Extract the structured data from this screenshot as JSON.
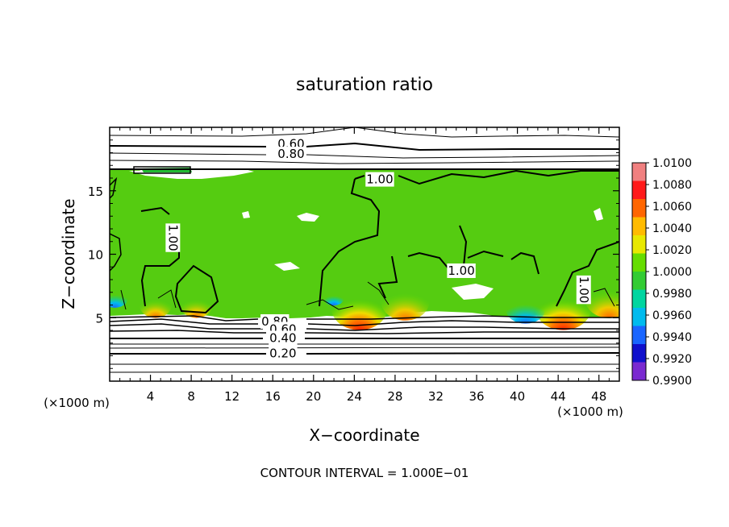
{
  "chart_data": {
    "type": "heatmap",
    "title": "saturation ratio",
    "xlabel": "X−coordinate",
    "ylabel": "Z−coordinate",
    "x_unit_left": "(×1000 m)",
    "x_unit_right": "(×1000 m)",
    "footer": "CONTOUR INTERVAL = 1.000E−01",
    "xlim": [
      0,
      50
    ],
    "ylim": [
      0,
      20
    ],
    "x_ticks": [
      4,
      8,
      12,
      16,
      20,
      24,
      28,
      32,
      36,
      40,
      44,
      48
    ],
    "y_ticks": [
      5,
      10,
      15
    ],
    "colorbar": {
      "min": 0.99,
      "max": 1.01,
      "labels": [
        "1.0100",
        "1.0080",
        "1.0060",
        "1.0040",
        "1.0020",
        "1.0000",
        "0.9980",
        "0.9960",
        "0.9940",
        "0.9920",
        "0.9900"
      ],
      "colors": [
        "#f08080",
        "#ff1a1a",
        "#ff6600",
        "#ffbb00",
        "#e8e800",
        "#66dd00",
        "#33cc33",
        "#00d5a0",
        "#00bbee",
        "#1a66ff",
        "#1010cc",
        "#7a2ad0"
      ]
    },
    "contour_labels": [
      {
        "text": "0.60",
        "x": 17.8,
        "z": 18.7
      },
      {
        "text": "0.80",
        "x": 17.8,
        "z": 17.9
      },
      {
        "text": "1.00",
        "x": 26.5,
        "z": 15.9
      },
      {
        "text": "1.00",
        "x": 6.2,
        "z": 11.3
      },
      {
        "text": "1.00",
        "x": 34.5,
        "z": 8.7
      },
      {
        "text": "1.00",
        "x": 46.5,
        "z": 7.2
      },
      {
        "text": "0.80",
        "x": 16.2,
        "z": 4.7
      },
      {
        "text": "0.60",
        "x": 17.0,
        "z": 4.1
      },
      {
        "text": "0.40",
        "x": 17.0,
        "z": 3.4
      },
      {
        "text": "0.20",
        "x": 17.0,
        "z": 2.2
      }
    ],
    "ambient_value": 1.0,
    "hot_spots": [
      {
        "x": 4.5,
        "z": 6.0,
        "value": 1.004
      },
      {
        "x": 8.5,
        "z": 6.0,
        "value": 1.004
      },
      {
        "x": 24.5,
        "z": 5.8,
        "value": 1.007
      },
      {
        "x": 29.0,
        "z": 6.3,
        "value": 1.006
      },
      {
        "x": 44.5,
        "z": 5.8,
        "value": 1.007
      },
      {
        "x": 49.0,
        "z": 6.5,
        "value": 1.006
      }
    ],
    "cold_spots": [
      {
        "x": 0.5,
        "z": 6.5,
        "value": 0.996
      },
      {
        "x": 40.8,
        "z": 5.6,
        "value": 0.994
      },
      {
        "x": 22.0,
        "z": 6.5,
        "value": 0.997
      }
    ]
  }
}
